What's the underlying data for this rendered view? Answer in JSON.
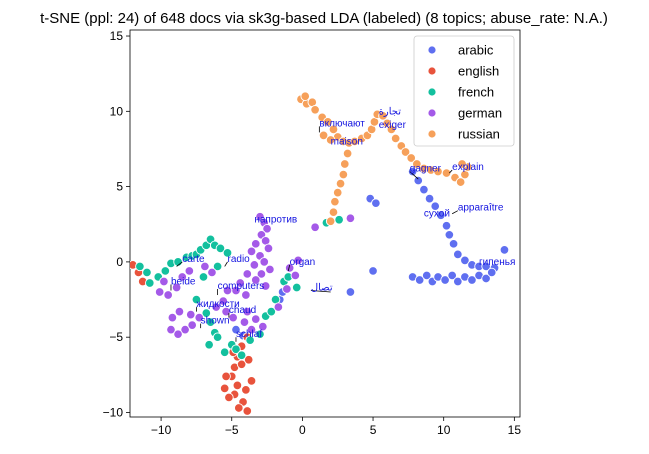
{
  "chart_data": {
    "type": "scatter",
    "title": "t-SNE (ppl: 24) of 648 docs via sk3g-based LDA (labeled) (8 topics; abuse_rate: N.A.)",
    "xlabel": "",
    "ylabel": "",
    "xlim": [
      -12.2,
      15.4
    ],
    "ylim": [
      -10.3,
      15.4
    ],
    "xticks": [
      -10,
      -5,
      0,
      5,
      10,
      15
    ],
    "yticks": [
      -10,
      -5,
      0,
      5,
      10,
      15
    ],
    "grid": false,
    "legend_position": "top-right",
    "series": [
      {
        "name": "arabic",
        "color": "#5f6ff0",
        "points": [
          [
            7.8,
            6.0
          ],
          [
            8.2,
            5.4
          ],
          [
            8.6,
            4.8
          ],
          [
            9.0,
            4.2
          ],
          [
            9.4,
            3.7
          ],
          [
            9.8,
            3.1
          ],
          [
            10.2,
            2.4
          ],
          [
            10.4,
            1.8
          ],
          [
            10.7,
            1.2
          ],
          [
            11.0,
            0.5
          ],
          [
            11.5,
            0.1
          ],
          [
            12.0,
            -0.2
          ],
          [
            12.5,
            -0.3
          ],
          [
            13.0,
            -0.3
          ],
          [
            13.6,
            -0.4
          ],
          [
            14.3,
            0.8
          ],
          [
            7.8,
            -1.0
          ],
          [
            8.3,
            -1.2
          ],
          [
            8.8,
            -0.9
          ],
          [
            9.2,
            -1.3
          ],
          [
            9.6,
            -1.0
          ],
          [
            10.1,
            -1.2
          ],
          [
            10.6,
            -0.9
          ],
          [
            11.0,
            -1.3
          ],
          [
            11.5,
            -1.0
          ],
          [
            12.0,
            -1.2
          ],
          [
            12.5,
            -0.9
          ],
          [
            13.0,
            -1.1
          ],
          [
            13.4,
            -0.7
          ],
          [
            4.8,
            4.2
          ],
          [
            5.2,
            3.9
          ],
          [
            5.0,
            -0.6
          ],
          [
            3.4,
            -2.0
          ],
          [
            -4.7,
            -4.5
          ],
          [
            -4.2,
            -4.9
          ],
          [
            -1.6,
            -2.5
          ],
          [
            -1.4,
            -2.0
          ]
        ]
      },
      {
        "name": "english",
        "color": "#e8533c",
        "points": [
          [
            -12.0,
            -0.2
          ],
          [
            -11.6,
            -0.7
          ],
          [
            -11.3,
            -1.3
          ],
          [
            -3.9,
            -5.0
          ],
          [
            -4.3,
            -5.6
          ],
          [
            -4.6,
            -6.3
          ],
          [
            -4.8,
            -7.0
          ],
          [
            -5.0,
            -7.6
          ],
          [
            -4.6,
            -8.2
          ],
          [
            -4.8,
            -8.8
          ],
          [
            -4.2,
            -9.3
          ],
          [
            -3.9,
            -9.9
          ],
          [
            -4.3,
            -6.8
          ],
          [
            -5.4,
            -7.6
          ],
          [
            -5.5,
            -8.4
          ],
          [
            -5.2,
            -9.0
          ],
          [
            -4.5,
            -9.7
          ],
          [
            -4.0,
            -8.5
          ],
          [
            -3.6,
            -7.9
          ],
          [
            -4.9,
            -6.0
          ],
          [
            -3.8,
            -6.5
          ]
        ]
      },
      {
        "name": "french",
        "color": "#13c09e",
        "points": [
          [
            -11.5,
            -0.3
          ],
          [
            -11.0,
            -0.7
          ],
          [
            -10.8,
            -1.4
          ],
          [
            -10.2,
            -1.0
          ],
          [
            -9.7,
            -0.6
          ],
          [
            -9.3,
            -0.1
          ],
          [
            -8.8,
            0.0
          ],
          [
            -8.2,
            0.3
          ],
          [
            -7.8,
            0.4
          ],
          [
            -7.5,
            0.5
          ],
          [
            -7.2,
            0.8
          ],
          [
            -6.8,
            1.1
          ],
          [
            -6.5,
            1.5
          ],
          [
            -6.2,
            1.1
          ],
          [
            -5.8,
            0.9
          ],
          [
            -5.3,
            0.6
          ],
          [
            -6.0,
            -0.3
          ],
          [
            -7.0,
            -1.0
          ],
          [
            -7.5,
            -2.5
          ],
          [
            -6.8,
            -3.4
          ],
          [
            -6.5,
            -4.0
          ],
          [
            -6.2,
            -4.7
          ],
          [
            -6.0,
            -5.0
          ],
          [
            -6.6,
            -5.5
          ],
          [
            -5.5,
            -6.0
          ],
          [
            -5.0,
            -5.5
          ],
          [
            -4.7,
            -5.8
          ],
          [
            -4.3,
            -6.2
          ],
          [
            -3.7,
            -5.2
          ],
          [
            -3.0,
            -4.8
          ],
          [
            -2.6,
            -3.6
          ],
          [
            -2.2,
            -3.3
          ],
          [
            -1.9,
            -2.5
          ],
          [
            -1.3,
            -1.3
          ],
          [
            -1.0,
            -1.0
          ],
          [
            1.7,
            2.6
          ],
          [
            2.6,
            2.8
          ],
          [
            -0.4,
            -1.7
          ]
        ]
      },
      {
        "name": "german",
        "color": "#a45ae8",
        "points": [
          [
            -3.0,
            3.0
          ],
          [
            -2.7,
            2.6
          ],
          [
            -2.5,
            2.2
          ],
          [
            -2.9,
            1.8
          ],
          [
            -2.6,
            1.4
          ],
          [
            -2.4,
            0.9
          ],
          [
            -3.3,
            1.2
          ],
          [
            -3.6,
            0.7
          ],
          [
            -3.0,
            0.4
          ],
          [
            -2.7,
            0.0
          ],
          [
            -3.4,
            -0.2
          ],
          [
            -2.3,
            -0.5
          ],
          [
            -2.9,
            -0.8
          ],
          [
            -3.3,
            -1.2
          ],
          [
            -2.6,
            -1.6
          ],
          [
            -3.9,
            -0.8
          ],
          [
            -4.4,
            -1.4
          ],
          [
            -4.7,
            -1.9
          ],
          [
            -4.0,
            -2.2
          ],
          [
            -5.3,
            -1.9
          ],
          [
            -5.6,
            -2.6
          ],
          [
            -6.1,
            -3.0
          ],
          [
            -5.4,
            -3.3
          ],
          [
            -4.9,
            -3.7
          ],
          [
            -3.9,
            -3.3
          ],
          [
            -3.3,
            -3.8
          ],
          [
            -2.8,
            -4.3
          ],
          [
            -3.6,
            -4.5
          ],
          [
            -4.1,
            -4.0
          ],
          [
            -7.3,
            -3.7
          ],
          [
            -7.8,
            -4.2
          ],
          [
            -8.3,
            -4.5
          ],
          [
            -8.8,
            -4.8
          ],
          [
            -9.3,
            -4.5
          ],
          [
            -9.2,
            -3.7
          ],
          [
            -8.7,
            -3.3
          ],
          [
            -7.9,
            -3.5
          ],
          [
            -9.8,
            -1.3
          ],
          [
            -10.1,
            -2.0
          ],
          [
            -9.5,
            -2.2
          ],
          [
            -8.9,
            -1.7
          ],
          [
            -8.5,
            -1.0
          ],
          [
            -8.0,
            -0.6
          ],
          [
            -6.9,
            -0.3
          ],
          [
            -6.4,
            -0.7
          ],
          [
            -0.9,
            -0.4
          ],
          [
            -0.5,
            -0.9
          ],
          [
            -1.1,
            -1.8
          ],
          [
            -0.3,
            0.1
          ],
          [
            0.9,
            2.3
          ],
          [
            3.4,
            2.9
          ],
          [
            -1.7,
            -3.0
          ]
        ]
      },
      {
        "name": "russian",
        "color": "#f6a05a",
        "points": [
          [
            -0.1,
            10.8
          ],
          [
            0.3,
            10.5
          ],
          [
            0.2,
            11.0
          ],
          [
            0.7,
            10.6
          ],
          [
            0.9,
            10.1
          ],
          [
            1.4,
            9.6
          ],
          [
            1.8,
            9.3
          ],
          [
            2.2,
            8.8
          ],
          [
            2.5,
            8.3
          ],
          [
            2.9,
            8.0
          ],
          [
            3.3,
            7.9
          ],
          [
            3.7,
            8.0
          ],
          [
            4.2,
            8.2
          ],
          [
            4.6,
            8.4
          ],
          [
            4.9,
            8.8
          ],
          [
            5.1,
            9.3
          ],
          [
            5.3,
            9.8
          ],
          [
            5.7,
            9.7
          ],
          [
            6.0,
            9.2
          ],
          [
            6.3,
            8.8
          ],
          [
            6.6,
            8.2
          ],
          [
            7.0,
            7.7
          ],
          [
            7.3,
            7.3
          ],
          [
            7.7,
            6.9
          ],
          [
            8.1,
            6.5
          ],
          [
            8.6,
            6.2
          ],
          [
            9.1,
            6.1
          ],
          [
            9.6,
            6.0
          ],
          [
            10.2,
            5.9
          ],
          [
            10.8,
            5.6
          ],
          [
            11.2,
            5.3
          ],
          [
            11.5,
            5.8
          ],
          [
            11.7,
            6.3
          ],
          [
            11.3,
            6.5
          ],
          [
            1.5,
            8.4
          ],
          [
            2.0,
            8.1
          ],
          [
            3.2,
            7.2
          ],
          [
            3.0,
            6.5
          ],
          [
            2.9,
            5.8
          ],
          [
            2.7,
            5.2
          ],
          [
            2.5,
            4.6
          ],
          [
            2.3,
            4.0
          ],
          [
            2.2,
            3.3
          ],
          [
            2.0,
            2.7
          ]
        ]
      }
    ],
    "annotations": [
      {
        "text": "carte",
        "x": -8.9,
        "y": -0.3,
        "tx": -8.5,
        "ty": 0.0
      },
      {
        "text": "beide",
        "x": -9.3,
        "y": -1.9,
        "tx": -9.3,
        "ty": -1.5
      },
      {
        "text": "computers",
        "x": -6.0,
        "y": -2.2,
        "tx": -6.0,
        "ty": -1.8
      },
      {
        "text": "жидкости",
        "x": -7.5,
        "y": -3.3,
        "tx": -7.5,
        "ty": -3.0
      },
      {
        "text": "shown",
        "x": -7.2,
        "y": -4.4,
        "tx": -7.2,
        "ty": -4.1
      },
      {
        "text": "chaud",
        "x": -5.2,
        "y": -3.7,
        "tx": -5.2,
        "ty": -3.4
      },
      {
        "text": "schlaf",
        "x": -4.7,
        "y": -5.3,
        "tx": -4.7,
        "ty": -5.0
      },
      {
        "text": "radio",
        "x": -5.5,
        "y": -0.3,
        "tx": -5.3,
        "ty": 0.0
      },
      {
        "text": "напротив",
        "x": -3.4,
        "y": 2.6,
        "tx": -3.4,
        "ty": 2.6
      },
      {
        "text": "organ",
        "x": -1.0,
        "y": -0.6,
        "tx": -0.9,
        "ty": -0.2
      },
      {
        "text": "تصال",
        "x": 2.0,
        "y": -2.0,
        "tx": 0.6,
        "ty": -1.9
      },
      {
        "text": "включают",
        "x": 1.2,
        "y": 8.6,
        "tx": 1.2,
        "ty": 9.0
      },
      {
        "text": "maison",
        "x": 2.0,
        "y": 7.8,
        "tx": 2.0,
        "ty": 7.8
      },
      {
        "text": "تجارة",
        "x": 5.4,
        "y": 9.8,
        "tx": 5.4,
        "ty": 9.8
      },
      {
        "text": "exiger",
        "x": 5.4,
        "y": 8.9,
        "tx": 5.4,
        "ty": 8.9
      },
      {
        "text": "gagner",
        "x": 8.2,
        "y": 5.5,
        "tx": 7.6,
        "ty": 6.0
      },
      {
        "text": "explain",
        "x": 10.4,
        "y": 5.9,
        "tx": 10.6,
        "ty": 6.1
      },
      {
        "text": "apparaître",
        "x": 10.6,
        "y": 3.2,
        "tx": 11.0,
        "ty": 3.4
      },
      {
        "text": "сухой",
        "x": 8.6,
        "y": 3.0,
        "tx": 8.6,
        "ty": 3.0
      },
      {
        "text": "гипенья",
        "x": 12.5,
        "y": -0.2,
        "tx": 12.5,
        "ty": -0.2
      }
    ]
  }
}
